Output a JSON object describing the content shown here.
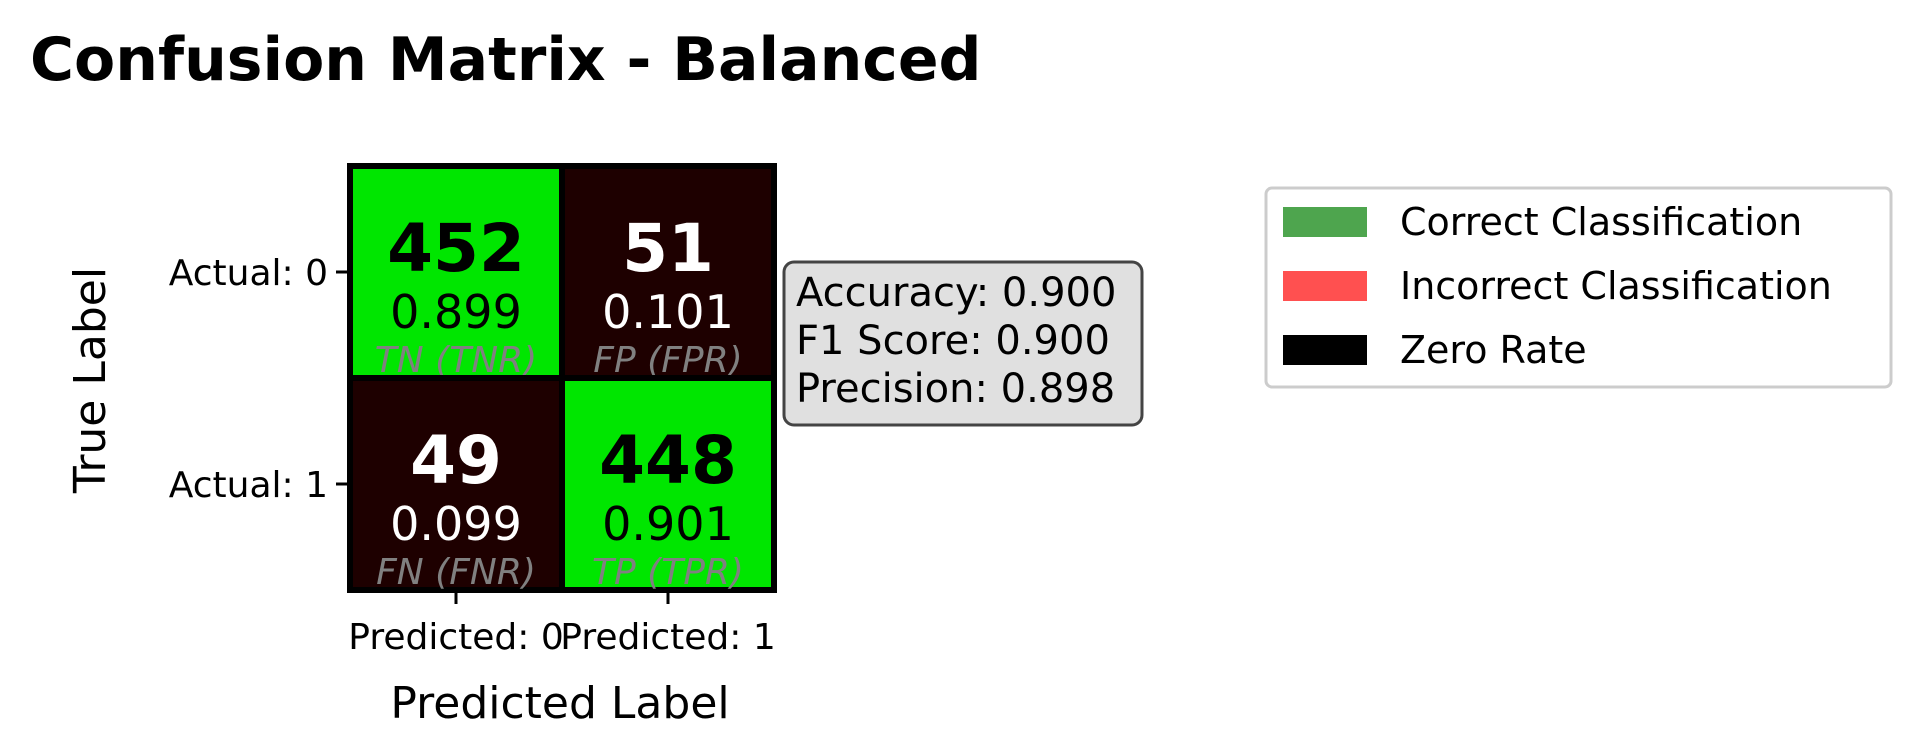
{
  "chart_data": {
    "type": "heatmap",
    "title": "Confusion Matrix - Balanced",
    "xlabel": "Predicted Label",
    "ylabel": "True Label",
    "x_tick_labels": [
      "Predicted: 0",
      "Predicted: 1"
    ],
    "y_tick_labels": [
      "Actual: 0",
      "Actual: 1"
    ],
    "cells": [
      [
        {
          "count": "452",
          "rate": "0.899",
          "tag": "TN (TNR)",
          "correct": true
        },
        {
          "count": "51",
          "rate": "0.101",
          "tag": "FP (FPR)",
          "correct": false
        }
      ],
      [
        {
          "count": "49",
          "rate": "0.099",
          "tag": "FN (FNR)",
          "correct": false
        },
        {
          "count": "448",
          "rate": "0.901",
          "tag": "TP (TPR)",
          "correct": true
        }
      ]
    ],
    "metrics": [
      "Accuracy: 0.900",
      "F1 Score: 0.900",
      "Precision: 0.898"
    ],
    "legend": [
      {
        "label": "Correct Classification",
        "color": "#4ea54e"
      },
      {
        "label": "Incorrect Classification",
        "color": "#ff5050"
      },
      {
        "label": "Zero Rate",
        "color": "#000000"
      }
    ],
    "legend_position": "upper right, outside plot",
    "colors": {
      "correct_cell": "#00e600",
      "incorrect_cell": "#1e0000",
      "correct_text": "#000000",
      "incorrect_text": "#ffffff"
    }
  }
}
